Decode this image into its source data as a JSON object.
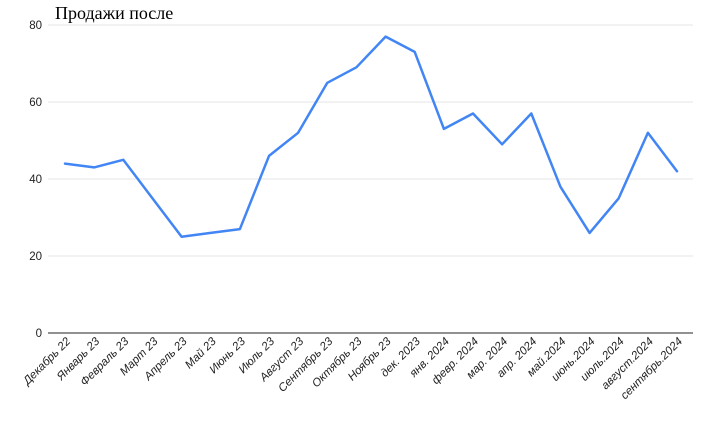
{
  "chart_data": {
    "type": "line",
    "title": "Продажи после",
    "categories": [
      "Декабрь 22",
      "Январь 23",
      "Февраль 23",
      "Март 23",
      "Апрель 23",
      "Май 23",
      "Июнь 23",
      "Июль 23",
      "Август 23",
      "Сентябрь 23",
      "Октябрь 23",
      "Ноябрь 23",
      "дек. 2023",
      "янв. 2024",
      "февр. 2024",
      "мар. 2024",
      "апр. 2024",
      "май.2024",
      "июнь.2024",
      "июль.2024",
      "август.2024",
      "сентябрь.2024"
    ],
    "values": [
      44,
      43,
      45,
      35,
      25,
      26,
      27,
      46,
      52,
      65,
      69,
      77,
      73,
      53,
      57,
      49,
      57,
      38,
      26,
      35,
      52,
      42
    ],
    "xlabel": "",
    "ylabel": "",
    "ylim": [
      0,
      80
    ],
    "yticks": [
      0,
      20,
      40,
      60,
      80
    ],
    "grid": "horizontal",
    "legend": "none",
    "colors": {
      "line": "#4285f4",
      "gridline": "#e6e6e6",
      "axis_line": "#919191",
      "tick_text": "#1f1f1f",
      "title_text": "#000000",
      "background": "#ffffff"
    }
  }
}
